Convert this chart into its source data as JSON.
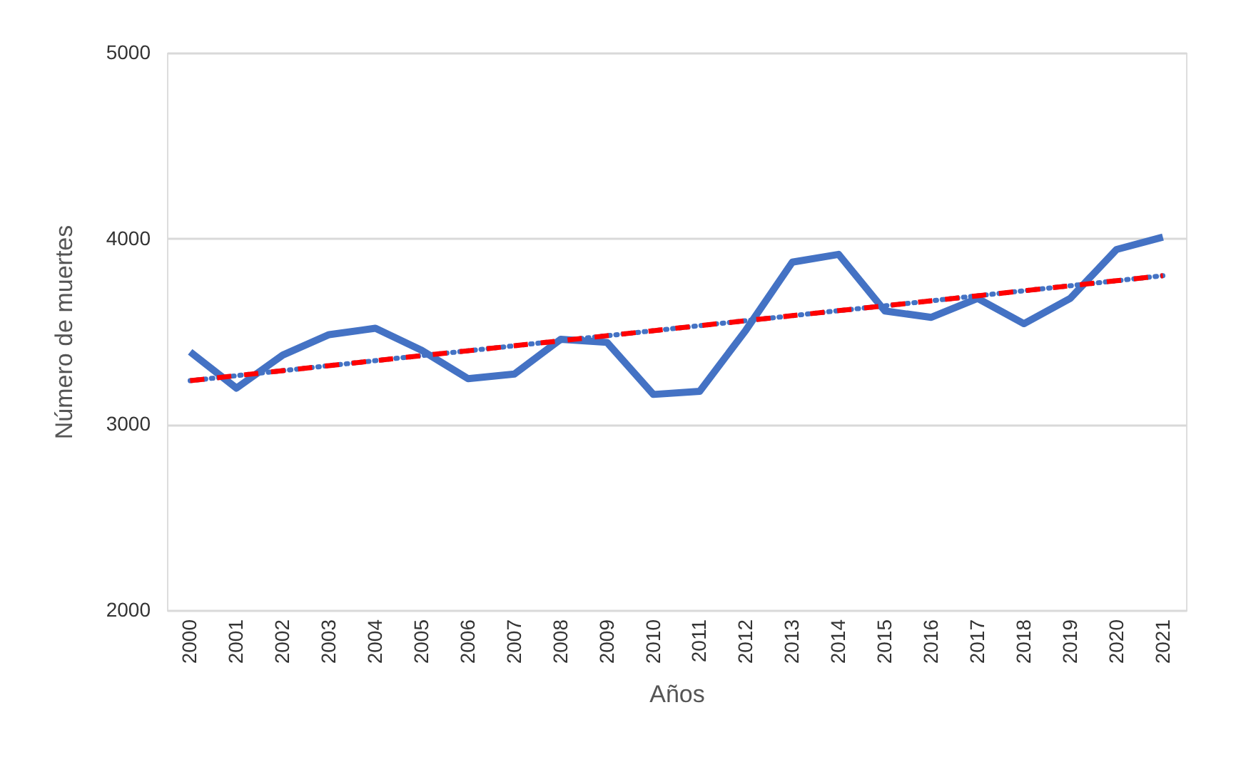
{
  "chart_data": {
    "type": "line",
    "xlabel": "Años",
    "ylabel": "Número de muertes",
    "categories": [
      "2000",
      "2001",
      "2002",
      "2003",
      "2004",
      "2005",
      "2006",
      "2007",
      "2008",
      "2009",
      "2010",
      "2011",
      "2012",
      "2013",
      "2014",
      "2015",
      "2016",
      "2017",
      "2018",
      "2019",
      "2020",
      "2021"
    ],
    "ylim": [
      2000,
      5000
    ],
    "yticks": [
      2000,
      3000,
      4000,
      5000
    ],
    "grid": "y",
    "marker": "none",
    "series": [
      {
        "color": "#4472c4",
        "line_style": "solid",
        "values": [
          3390,
          3195,
          3373,
          3483,
          3517,
          3398,
          3246,
          3271,
          3458,
          3441,
          3161,
          3178,
          3508,
          3873,
          3915,
          3610,
          3576,
          3678,
          3542,
          3678,
          3941,
          4008
        ]
      },
      {
        "color": "#4472c4",
        "line_style": "dotted",
        "values": [
          3235,
          3262,
          3289,
          3316,
          3343,
          3370,
          3396,
          3423,
          3450,
          3477,
          3504,
          3531,
          3558,
          3585,
          3612,
          3638,
          3665,
          3692,
          3719,
          3746,
          3773,
          3800
        ]
      },
      {
        "color": "#ff0000",
        "line_style": "dashed",
        "values": [
          3235,
          3262,
          3289,
          3316,
          3343,
          3370,
          3396,
          3423,
          3450,
          3477,
          3504,
          3531,
          3558,
          3585,
          3612,
          3638,
          3665,
          3692,
          3719,
          3746,
          3773,
          3800
        ]
      }
    ]
  }
}
